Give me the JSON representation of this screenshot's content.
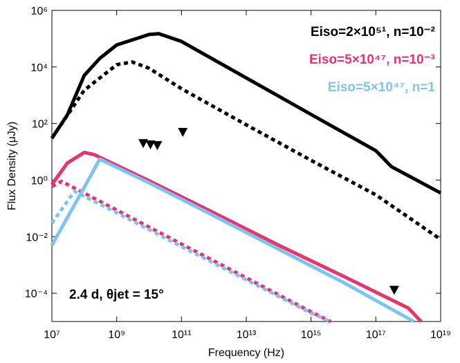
{
  "chart_data": {
    "type": "line",
    "xlabel": "Frequency (Hz)",
    "ylabel": "Flux Density (μJy)",
    "xscale": "log",
    "yscale": "log",
    "xlim": [
      10000000,
      10000000000000000000
    ],
    "ylim": [
      1e-05,
      1000000
    ],
    "xticks": [
      {
        "value": 10000000,
        "label": "10⁷"
      },
      {
        "value": 1000000000,
        "label": "10⁹"
      },
      {
        "value": 100000000000,
        "label": "10¹¹"
      },
      {
        "value": 10000000000000,
        "label": "10¹³"
      },
      {
        "value": 1000000000000000,
        "label": "10¹⁵"
      },
      {
        "value": 100000000000000000,
        "label": "10¹⁷"
      },
      {
        "value": 10000000000000000000,
        "label": "10¹⁹"
      }
    ],
    "yticks": [
      {
        "value": 0.0001,
        "label": "10⁻⁴"
      },
      {
        "value": 0.01,
        "label": "10⁻²"
      },
      {
        "value": 1,
        "label": "10⁰"
      },
      {
        "value": 100,
        "label": "10²"
      },
      {
        "value": 10000,
        "label": "10⁴"
      },
      {
        "value": 1000000,
        "label": "10⁶"
      }
    ],
    "annotation": "2.4 d, θjet = 15°",
    "series": [
      {
        "name": "Eiso=2×10⁵¹, n=10⁻²",
        "color": "#000000",
        "dash": "solid",
        "x": [
          10000000,
          30000000,
          100000000,
          300000000,
          1000000000,
          10000000000,
          20000000000,
          100000000000,
          10000000000000,
          1000000000000000,
          100000000000000000,
          300000000000000000,
          10000000000000000000
        ],
        "values": [
          30,
          200,
          5000,
          20000,
          60000,
          140000,
          150000,
          80000,
          4100,
          210,
          11,
          3,
          0.35
        ]
      },
      {
        "color": "#000000",
        "dash": "dotted",
        "x": [
          10000000,
          100000000,
          1000000000,
          3000000000,
          10000000000,
          100000000000,
          10000000000000,
          1000000000000000,
          100000000000000000,
          10000000000000000000
        ],
        "values": [
          30,
          1500,
          12000,
          15000,
          9000,
          1700,
          90,
          5,
          0.3,
          0.008
        ]
      },
      {
        "name": "Eiso=5×10⁴⁷, n=10⁻³",
        "color": "#e8336e",
        "dash": "solid",
        "x": [
          10000000,
          30000000,
          100000000,
          200000000,
          10000000000,
          1000000000000,
          100000000000000,
          10000000000000000,
          1000000000000000000,
          2500000000000000000
        ],
        "values": [
          0.7,
          4,
          9.5,
          8,
          0.95,
          0.07,
          0.005,
          0.0004,
          3e-05,
          1e-05
        ]
      },
      {
        "color": "#e8336e",
        "dash": "dotted",
        "x": [
          10000000,
          20000000,
          1000000000,
          100000000000,
          10000000000000,
          1000000000000000,
          4000000000000000
        ],
        "values": [
          0.6,
          0.9,
          0.087,
          0.0055,
          0.00035,
          2.2e-05,
          1e-05
        ]
      },
      {
        "name": "Eiso=5×10⁴⁷, n=1",
        "color": "#7ec4f0",
        "dash": "solid",
        "x": [
          10000000,
          100000000,
          300000000,
          10000000000,
          1000000000000,
          100000000000000,
          10000000000000000,
          1500000000000000000
        ],
        "values": [
          0.005,
          0.55,
          5.5,
          0.8,
          0.055,
          0.0036,
          0.00024,
          1e-05
        ]
      },
      {
        "color": "#7ec4f0",
        "dash": "dotted",
        "x": [
          10000000,
          50000000,
          1000000000,
          100000000000,
          10000000000000,
          1000000000000000,
          4000000000000000
        ],
        "values": [
          0.03,
          0.4,
          0.07,
          0.0045,
          0.0003,
          2e-05,
          1e-05
        ]
      }
    ],
    "upper_limits": {
      "color": "#000000",
      "x": [
        6600000000,
        11000000000,
        18000000000,
        110000000000,
        370000000000000000
      ],
      "values": [
        20,
        18,
        17,
        50,
        0.00013
      ]
    }
  }
}
